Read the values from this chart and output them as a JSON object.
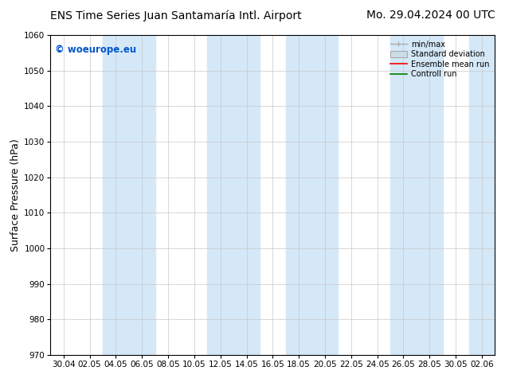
{
  "title_left": "ENS Time Series Juan Santamaría Intl. Airport",
  "title_right": "Mo. 29.04.2024 00 UTC",
  "ylabel": "Surface Pressure (hPa)",
  "ylim": [
    970,
    1060
  ],
  "yticks": [
    970,
    980,
    990,
    1000,
    1010,
    1020,
    1030,
    1040,
    1050,
    1060
  ],
  "xlabel_ticks": [
    "30.04",
    "02.05",
    "04.05",
    "06.05",
    "08.05",
    "10.05",
    "12.05",
    "14.05",
    "16.05",
    "18.05",
    "20.05",
    "22.05",
    "24.05",
    "26.05",
    "28.05",
    "30.05",
    "02.06"
  ],
  "watermark": "© woeurope.eu",
  "watermark_color": "#0055cc",
  "background_color": "#ffffff",
  "plot_bg_color": "#ffffff",
  "shaded_band_color": "#d4e8f8",
  "shaded_ranges": [
    [
      1.5,
      3.5
    ],
    [
      5.5,
      7.5
    ],
    [
      8.5,
      10.5
    ],
    [
      12.5,
      14.5
    ],
    [
      15.5,
      17.0
    ]
  ],
  "legend_entries": [
    "min/max",
    "Standard deviation",
    "Ensemble mean run",
    "Controll run"
  ],
  "title_fontsize": 10,
  "tick_fontsize": 7.5,
  "ylabel_fontsize": 9
}
